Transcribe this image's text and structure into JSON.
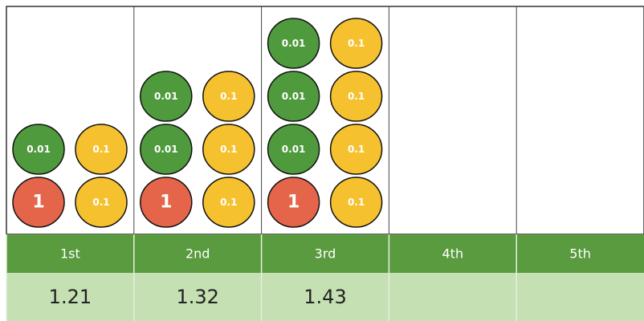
{
  "columns": [
    {
      "label": "1st",
      "value": 1.21,
      "counters": [
        [
          {
            "label": "1",
            "color": "#e4654a"
          },
          {
            "label": "0.1",
            "color": "#f6c12e"
          }
        ],
        [
          {
            "label": "0.01",
            "color": "#4f9a3d"
          },
          {
            "label": "0.1",
            "color": "#f6c12e"
          }
        ]
      ]
    },
    {
      "label": "2nd",
      "value": 1.32,
      "counters": [
        [
          {
            "label": "1",
            "color": "#e4654a"
          },
          {
            "label": "0.1",
            "color": "#f6c12e"
          }
        ],
        [
          {
            "label": "0.01",
            "color": "#4f9a3d"
          },
          {
            "label": "0.1",
            "color": "#f6c12e"
          }
        ],
        [
          {
            "label": "0.01",
            "color": "#4f9a3d"
          },
          {
            "label": "0.1",
            "color": "#f6c12e"
          }
        ]
      ]
    },
    {
      "label": "3rd",
      "value": 1.43,
      "counters": [
        [
          {
            "label": "1",
            "color": "#e4654a"
          },
          {
            "label": "0.1",
            "color": "#f6c12e"
          }
        ],
        [
          {
            "label": "0.01",
            "color": "#4f9a3d"
          },
          {
            "label": "0.1",
            "color": "#f6c12e"
          }
        ],
        [
          {
            "label": "0.01",
            "color": "#4f9a3d"
          },
          {
            "label": "0.1",
            "color": "#f6c12e"
          }
        ],
        [
          {
            "label": "0.01",
            "color": "#4f9a3d"
          },
          {
            "label": "0.1",
            "color": "#f6c12e"
          }
        ]
      ]
    },
    {
      "label": "4th",
      "counters": []
    },
    {
      "label": "5th",
      "counters": []
    }
  ]
}
